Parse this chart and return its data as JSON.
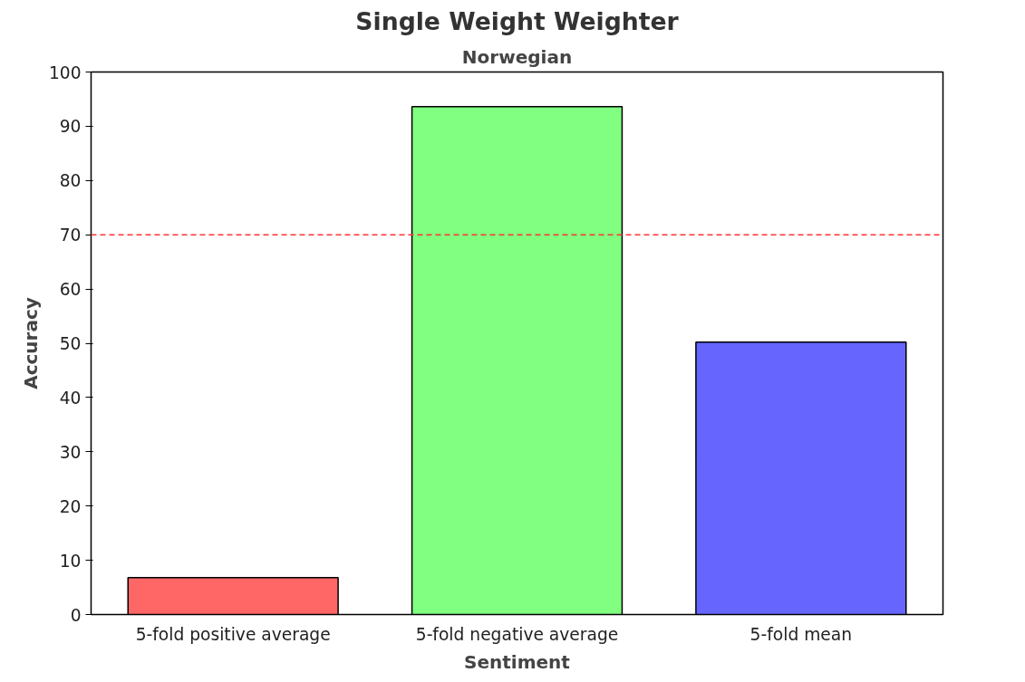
{
  "chart_data": {
    "type": "bar",
    "title": "Single Weight Weighter",
    "subtitle": "Norwegian",
    "xlabel": "Sentiment",
    "ylabel": "Accuracy",
    "categories": [
      "5-fold positive average",
      "5-fold negative average",
      "5-fold mean"
    ],
    "values": [
      6.8,
      93.6,
      50.2
    ],
    "colors": [
      "#ff6666",
      "#80ff80",
      "#6666ff"
    ],
    "ylim": [
      0,
      100
    ],
    "yticks": [
      0,
      10,
      20,
      30,
      40,
      50,
      60,
      70,
      80,
      90,
      100
    ],
    "grid": false,
    "ref_lines": [
      {
        "axis": "y",
        "value": 70,
        "color": "#ff3333",
        "line_style": "dashed"
      }
    ]
  }
}
